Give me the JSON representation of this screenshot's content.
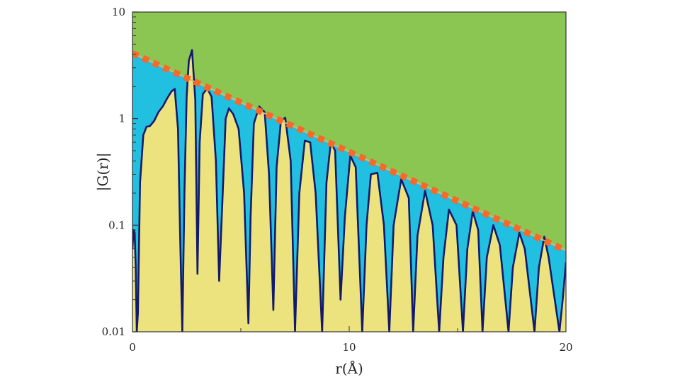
{
  "chart_data": {
    "type": "area",
    "title": "",
    "xlabel": "r(Å)",
    "ylabel": "|G(r)|",
    "xlim": [
      0,
      20
    ],
    "ylim": [
      0.01,
      10
    ],
    "yscale": "log",
    "x_ticks": [
      0,
      10,
      20
    ],
    "x_tick_labels": [
      "0",
      "10",
      "20"
    ],
    "y_ticks": [
      0.01,
      0.1,
      1,
      10
    ],
    "y_tick_labels": [
      "0.01",
      "0.1",
      "1",
      "10"
    ],
    "grid": false,
    "legend": null,
    "colors": {
      "above_envelope": "#8bc653",
      "between_envelope_and_curve": "#21bfe0",
      "under_curve": "#ece37f",
      "curve": "#141a6b",
      "envelope_dash": "#f5692a",
      "envelope_line": "#c9b98a",
      "frame": "#333333"
    },
    "series": [
      {
        "name": "|G(r)|",
        "style": "solid",
        "x": [
          0.0,
          0.05,
          0.1,
          0.15,
          0.2,
          0.25,
          0.35,
          0.5,
          0.65,
          0.8,
          1.0,
          1.2,
          1.4,
          1.6,
          1.8,
          1.95,
          2.1,
          2.2,
          2.3,
          2.4,
          2.5,
          2.6,
          2.75,
          2.9,
          3.0,
          3.1,
          3.25,
          3.45,
          3.65,
          3.85,
          4.0,
          4.2,
          4.3,
          4.45,
          4.65,
          4.9,
          5.15,
          5.35,
          5.45,
          5.6,
          5.85,
          6.1,
          6.3,
          6.5,
          6.65,
          6.85,
          7.05,
          7.3,
          7.5,
          7.7,
          7.95,
          8.2,
          8.45,
          8.75,
          8.95,
          9.15,
          9.35,
          9.6,
          9.8,
          10.05,
          10.3,
          10.6,
          10.8,
          11.0,
          11.3,
          11.6,
          11.85,
          12.05,
          12.4,
          12.75,
          12.95,
          13.15,
          13.5,
          13.85,
          14.15,
          14.35,
          14.6,
          14.95,
          15.25,
          15.45,
          15.7,
          15.95,
          16.15,
          16.35,
          16.65,
          16.95,
          17.35,
          17.55,
          17.85,
          18.1,
          18.55,
          18.75,
          19.0,
          19.2,
          19.7,
          19.85,
          20.0
        ],
        "y": [
          0.06,
          0.09,
          0.085,
          0.04,
          0.01,
          0.015,
          0.25,
          0.7,
          0.84,
          0.85,
          0.95,
          1.15,
          1.3,
          1.55,
          1.8,
          1.9,
          0.8,
          0.08,
          0.01,
          0.2,
          1.6,
          3.5,
          4.4,
          1.5,
          0.035,
          0.6,
          1.7,
          1.92,
          1.6,
          0.4,
          0.03,
          0.3,
          1.0,
          1.25,
          1.1,
          0.8,
          0.2,
          0.012,
          0.12,
          0.9,
          1.3,
          1.15,
          0.3,
          0.016,
          0.35,
          0.95,
          1.02,
          0.4,
          0.01,
          0.2,
          0.62,
          0.6,
          0.2,
          0.01,
          0.25,
          0.6,
          0.5,
          0.02,
          0.12,
          0.45,
          0.35,
          0.01,
          0.1,
          0.3,
          0.31,
          0.1,
          0.01,
          0.1,
          0.27,
          0.18,
          0.01,
          0.08,
          0.21,
          0.1,
          0.01,
          0.05,
          0.14,
          0.1,
          0.01,
          0.06,
          0.135,
          0.09,
          0.01,
          0.05,
          0.1,
          0.065,
          0.01,
          0.04,
          0.085,
          0.06,
          0.01,
          0.04,
          0.078,
          0.05,
          0.01,
          0.02,
          0.045
        ]
      },
      {
        "name": "envelope",
        "style": "dashed",
        "x": [
          0,
          20
        ],
        "y": [
          4.1,
          0.058
        ]
      }
    ]
  }
}
